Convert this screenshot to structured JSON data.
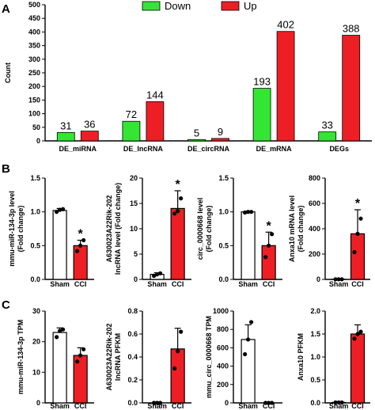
{
  "panel_letters": [
    "A",
    "B",
    "C"
  ],
  "colors": {
    "down": "#33e633",
    "up": "#ee1f24",
    "white": "#ffffff",
    "axis": "#000000"
  },
  "chart_data": [
    {
      "panel": "A",
      "type": "bar",
      "ylabel": "Count",
      "ylim": [
        0,
        500
      ],
      "yticks": [
        0,
        50,
        100,
        150,
        200,
        250,
        300,
        350,
        400,
        450,
        500
      ],
      "categories": [
        "DE_miRNA",
        "DE_lncRNA",
        "DE_circRNA",
        "DE_mRNA",
        "DEGs"
      ],
      "series": [
        {
          "name": "Down",
          "color": "#33e633",
          "values": [
            31,
            72,
            5,
            193,
            33
          ]
        },
        {
          "name": "Up",
          "color": "#ee1f24",
          "values": [
            36,
            144,
            9,
            402,
            388
          ]
        }
      ],
      "legend": "top-center",
      "grid": false
    },
    {
      "panel": "B1",
      "type": "bar",
      "ylabel": [
        "mmu-miR-134-3p level",
        "(Fold change)"
      ],
      "ylim": [
        0,
        1.5
      ],
      "yticks": [
        "0.0",
        "0.5",
        "1.0",
        "1.5"
      ],
      "categories": [
        "Sham",
        "CCI"
      ],
      "values": [
        1.02,
        0.5
      ],
      "errors": [
        0.03,
        0.08
      ],
      "points": [
        [
          1.0,
          1.03,
          1.04
        ],
        [
          0.42,
          0.5,
          0.58
        ]
      ],
      "star": [
        false,
        true
      ]
    },
    {
      "panel": "B2",
      "type": "bar",
      "ylabel": [
        "A630023A22Rik-202",
        "lncRNA level (Fold change)"
      ],
      "ylim": [
        0,
        20
      ],
      "yticks": [
        "0",
        "5",
        "10",
        "15",
        "20"
      ],
      "categories": [
        "Sham",
        "CCI"
      ],
      "values": [
        1.0,
        14.0
      ],
      "errors": [
        0.3,
        3.5
      ],
      "points": [
        [
          0.7,
          1.0,
          1.2
        ],
        [
          13.0,
          13.5,
          16.0
        ]
      ],
      "star": [
        false,
        true
      ]
    },
    {
      "panel": "B3",
      "type": "bar",
      "ylabel": [
        "circ_0000668 level",
        "(Fold change)"
      ],
      "ylim": [
        0,
        1.5
      ],
      "yticks": [
        "0.0",
        "0.5",
        "1.0",
        "1.5"
      ],
      "categories": [
        "Sham",
        "CCI"
      ],
      "values": [
        1.0,
        0.5
      ],
      "errors": [
        0.01,
        0.2
      ],
      "points": [
        [
          0.99,
          1.0,
          1.0
        ],
        [
          0.33,
          0.5,
          0.67
        ]
      ],
      "star": [
        false,
        true
      ]
    },
    {
      "panel": "B4",
      "type": "bar",
      "ylabel": [
        "Anxa10 mRNA level",
        "(Fold change)"
      ],
      "ylim": [
        0,
        800
      ],
      "yticks": [
        "0",
        "200",
        "400",
        "600",
        "800"
      ],
      "categories": [
        "Sham",
        "CCI"
      ],
      "values": [
        1,
        360
      ],
      "errors": [
        0,
        190
      ],
      "points": [
        [
          1,
          1,
          1
        ],
        [
          215,
          360,
          480
        ]
      ],
      "star": [
        false,
        true
      ]
    },
    {
      "panel": "C1",
      "type": "bar",
      "ylabel": [
        "mmu-miR-134-3p TPM"
      ],
      "ylim": [
        0,
        30
      ],
      "yticks": [
        "0",
        "10",
        "20",
        "30"
      ],
      "categories": [
        "Sham",
        "CCI"
      ],
      "values": [
        23,
        15.5
      ],
      "errors": [
        1.5,
        2.5
      ],
      "points": [
        [
          21.5,
          23.5,
          24.0
        ],
        [
          13.5,
          15.5,
          17.5
        ]
      ],
      "star": [
        false,
        false
      ]
    },
    {
      "panel": "C2",
      "type": "bar",
      "ylabel": [
        "A630023A22Rik-202",
        "lncRNA PFKM"
      ],
      "ylim": [
        0,
        0.8
      ],
      "yticks": [
        "0.0",
        "0.2",
        "0.4",
        "0.6",
        "0.8"
      ],
      "categories": [
        "Sham",
        "CCI"
      ],
      "values": [
        0,
        0.47
      ],
      "errors": [
        0,
        0.18
      ],
      "points": [
        [
          0,
          0,
          0
        ],
        [
          0.3,
          0.45,
          0.62
        ]
      ],
      "star": [
        false,
        false
      ]
    },
    {
      "panel": "C3",
      "type": "bar",
      "ylabel": [
        "mmu_circ_0000668 TPM"
      ],
      "ylim": [
        0,
        1000
      ],
      "yticks": [
        "0",
        "200",
        "400",
        "600",
        "800",
        "1000"
      ],
      "categories": [
        "Sham",
        "CCI"
      ],
      "values": [
        690,
        0
      ],
      "errors": [
        160,
        0
      ],
      "points": [
        [
          530,
          690,
          880
        ],
        [
          0,
          0,
          0
        ]
      ],
      "star": [
        false,
        false
      ]
    },
    {
      "panel": "C4",
      "type": "bar",
      "ylabel": [
        "Anxa10 PFKM"
      ],
      "ylim": [
        0,
        2.0
      ],
      "yticks": [
        "0.0",
        "0.5",
        "1.0",
        "1.5",
        "2.0"
      ],
      "categories": [
        "Sham",
        "CCI"
      ],
      "values": [
        0.01,
        1.5
      ],
      "errors": [
        0,
        0.2
      ],
      "points": [
        [
          0.01,
          0.01,
          0.01
        ],
        [
          1.4,
          1.5,
          1.55
        ]
      ],
      "star": [
        false,
        false
      ]
    }
  ]
}
